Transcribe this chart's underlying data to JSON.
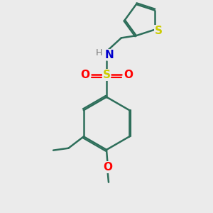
{
  "background_color": "#ebebeb",
  "bond_color": "#2d6e5a",
  "bond_width": 1.8,
  "dbo": 0.09,
  "S_color": "#cccc00",
  "O_color": "#ff0000",
  "N_color": "#0000cc",
  "H_color": "#777777",
  "figsize": [
    3.0,
    3.0
  ],
  "dpi": 100,
  "xlim": [
    0,
    10
  ],
  "ylim": [
    0,
    10
  ]
}
